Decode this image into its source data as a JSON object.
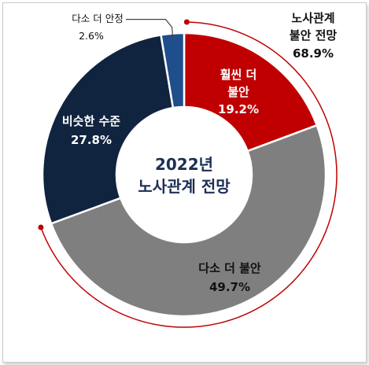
{
  "chart_data": {
    "type": "pie",
    "title": "",
    "center_label": [
      "2022년",
      "노사관계 전망"
    ],
    "categories": [
      "훨씬 더 불안",
      "다소 더 불안",
      "비슷한 수준",
      "다소 더 안정"
    ],
    "values": [
      19.2,
      49.7,
      27.8,
      2.6
    ],
    "value_labels": [
      "19.2%",
      "49.7%",
      "27.8%",
      "2.6%"
    ],
    "colors": [
      "#c00000",
      "#7f7f7f",
      "#10243f",
      "#1f4e8c"
    ],
    "total_label": [
      "노사관계",
      "불안 전망",
      "68.9%"
    ],
    "total_value": 68.9,
    "total_color": "#c00000",
    "legend": "none",
    "grid": false
  }
}
